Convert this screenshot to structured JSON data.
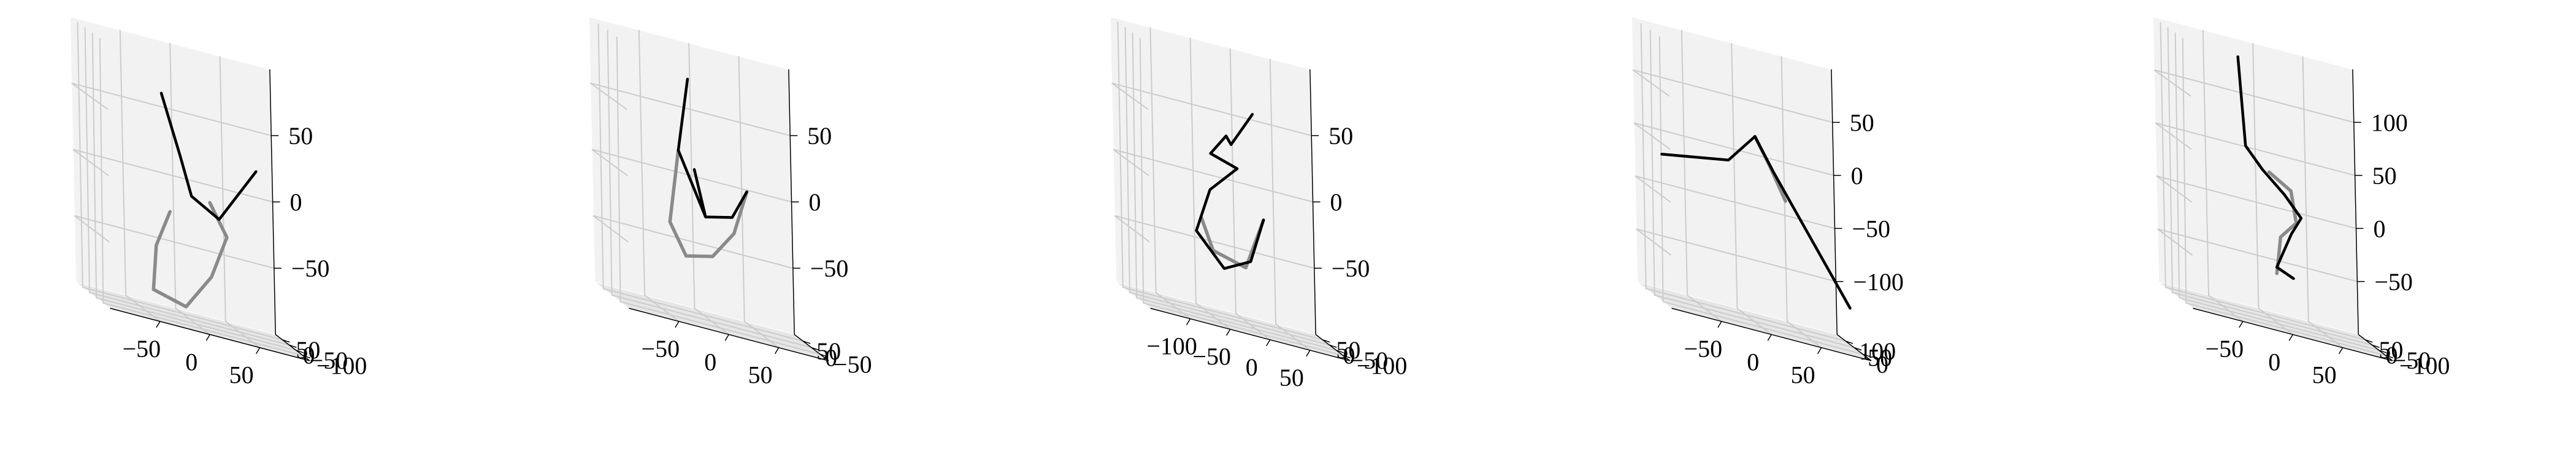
{
  "chart_data": [
    {
      "type": "line3d",
      "xlim": [
        -100,
        100
      ],
      "ylim": [
        -100,
        100
      ],
      "zlim": [
        -90,
        90
      ],
      "x_ticks": [
        "−50",
        "0",
        "50"
      ],
      "y_ticks": [
        "−100",
        "−50",
        "0",
        "50"
      ],
      "z_ticks": [
        "50",
        "0",
        "−50"
      ],
      "series": [
        {
          "style": "black",
          "points": [
            [
              -30,
              -5,
              60
            ],
            [
              -10,
              5,
              20
            ],
            [
              0,
              0,
              -5
            ],
            [
              25,
              -15,
              -15
            ],
            [
              60,
              -30,
              25
            ]
          ]
        },
        {
          "style": "gray",
          "points": [
            [
              -20,
              10,
              -20
            ],
            [
              -35,
              5,
              -45
            ],
            [
              -40,
              -5,
              -75
            ],
            [
              -10,
              -20,
              -80
            ],
            [
              15,
              -25,
              -55
            ],
            [
              30,
              -30,
              -25
            ],
            [
              15,
              -20,
              -5
            ]
          ]
        }
      ]
    },
    {
      "type": "line3d",
      "xlim": [
        -100,
        100
      ],
      "ylim": [
        -100,
        100
      ],
      "zlim": [
        -90,
        90
      ],
      "x_ticks": [
        "−50",
        "0",
        "50"
      ],
      "y_ticks": [
        "−50",
        "0",
        "50"
      ],
      "z_ticks": [
        "50",
        "0",
        "−50"
      ],
      "series": [
        {
          "style": "black",
          "points": [
            [
              -20,
              10,
              70
            ],
            [
              -30,
              10,
              20
            ],
            [
              -5,
              0,
              -20
            ],
            [
              -15,
              5,
              10
            ],
            [
              -5,
              0,
              -20
            ],
            [
              20,
              -10,
              -15
            ],
            [
              35,
              -10,
              5
            ]
          ]
        },
        {
          "style": "gray",
          "points": [
            [
              -30,
              10,
              20
            ],
            [
              -40,
              5,
              -30
            ],
            [
              -25,
              0,
              -50
            ],
            [
              0,
              -10,
              -45
            ],
            [
              20,
              -20,
              -25
            ],
            [
              35,
              -10,
              5
            ]
          ]
        }
      ]
    },
    {
      "type": "line3d",
      "xlim": [
        -100,
        100
      ],
      "ylim": [
        -100,
        100
      ],
      "zlim": [
        -90,
        90
      ],
      "x_ticks": [
        "−100",
        "−50",
        "0",
        "50"
      ],
      "y_ticks": [
        "−100",
        "−50",
        "0",
        "50"
      ],
      "z_ticks": [
        "50",
        "0",
        "−50"
      ],
      "series": [
        {
          "style": "black",
          "points": [
            [
              20,
              -10,
              55
            ],
            [
              0,
              0,
              30
            ],
            [
              -5,
              0,
              35
            ],
            [
              -20,
              5,
              20
            ],
            [
              5,
              -5,
              15
            ],
            [
              -20,
              10,
              -5
            ],
            [
              -35,
              5,
              -35
            ],
            [
              -10,
              -10,
              -55
            ],
            [
              15,
              -20,
              -45
            ],
            [
              30,
              -10,
              -15
            ]
          ]
        },
        {
          "style": "gray",
          "points": [
            [
              -30,
              5,
              -25
            ],
            [
              -20,
              -5,
              -45
            ],
            [
              10,
              -20,
              -50
            ],
            [
              30,
              -10,
              -15
            ]
          ]
        }
      ]
    },
    {
      "type": "line3d",
      "xlim": [
        -100,
        100
      ],
      "ylim": [
        -40,
        140
      ],
      "zlim": [
        -120,
        90
      ],
      "x_ticks": [
        "−50",
        "0",
        "50"
      ],
      "y_ticks": [
        "0",
        "50",
        "100"
      ],
      "z_ticks": [
        "50",
        "0",
        "−50",
        "−100"
      ],
      "series": [
        {
          "style": "black",
          "points": [
            [
              -95,
              30,
              -5
            ],
            [
              -30,
              20,
              5
            ],
            [
              -5,
              10,
              30
            ],
            [
              15,
              20,
              5
            ],
            [
              85,
              -10,
              -85
            ]
          ]
        },
        {
          "style": "gray",
          "points": [
            [
              -5,
              10,
              30
            ],
            [
              10,
              15,
              10
            ],
            [
              25,
              10,
              -15
            ]
          ]
        }
      ]
    },
    {
      "type": "line3d",
      "xlim": [
        -100,
        100
      ],
      "ylim": [
        -100,
        100
      ],
      "zlim": [
        -90,
        125
      ],
      "x_ticks": [
        "−50",
        "0",
        "50"
      ],
      "y_ticks": [
        "−100",
        "−50",
        "0",
        "50"
      ],
      "z_ticks": [
        "100",
        "50",
        "0",
        "−50"
      ],
      "series": [
        {
          "style": "black",
          "points": [
            [
              -30,
              30,
              115
            ],
            [
              -25,
              20,
              45
            ],
            [
              -10,
              10,
              30
            ],
            [
              10,
              0,
              15
            ],
            [
              25,
              -10,
              0
            ],
            [
              15,
              -10,
              -15
            ],
            [
              0,
              -10,
              -45
            ],
            [
              15,
              -20,
              -50
            ]
          ]
        },
        {
          "style": "gray",
          "points": [
            [
              -5,
              0,
              30
            ],
            [
              15,
              -10,
              20
            ],
            [
              20,
              -10,
              -5
            ],
            [
              5,
              -5,
              -20
            ],
            [
              0,
              -10,
              -50
            ]
          ]
        }
      ]
    }
  ]
}
